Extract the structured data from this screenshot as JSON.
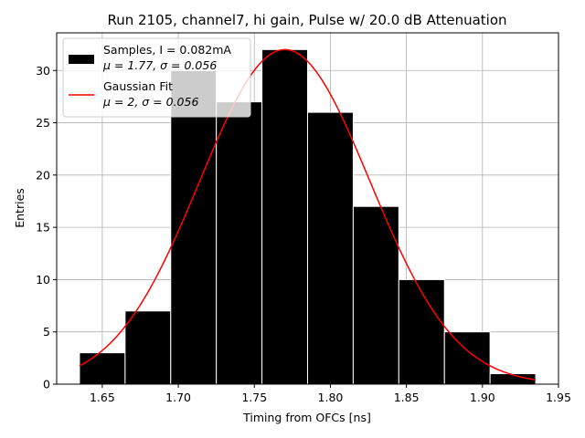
{
  "chart_data": {
    "type": "bar",
    "title": "Run 2105, channel7, hi gain, Pulse w/ 20.0 dB Attenuation",
    "xlabel": "Timing from OFCs [ns]",
    "ylabel": "Entries",
    "xlim": [
      1.62,
      1.95
    ],
    "ylim": [
      0,
      33.6
    ],
    "xticks": [
      1.65,
      1.7,
      1.75,
      1.8,
      1.85,
      1.9,
      1.95
    ],
    "xtick_labels": [
      "1.65",
      "1.70",
      "1.75",
      "1.80",
      "1.85",
      "1.90",
      "1.95"
    ],
    "yticks": [
      0,
      5,
      10,
      15,
      20,
      25,
      30
    ],
    "ytick_labels": [
      "0",
      "5",
      "10",
      "15",
      "20",
      "25",
      "30"
    ],
    "grid": true,
    "legend_position": "top-left",
    "histogram": {
      "name_line1": "Samples, I = 0.082mA",
      "name_line2": "μ = 1.77, σ = 0.056",
      "color": "#000000",
      "edgecolor": "#ffffff",
      "bin_edges": [
        1.635,
        1.665,
        1.695,
        1.725,
        1.755,
        1.785,
        1.815,
        1.845,
        1.875,
        1.905,
        1.935
      ],
      "counts": [
        3,
        7,
        30,
        27,
        32,
        26,
        17,
        10,
        5,
        1
      ]
    },
    "fit": {
      "name_line1": "Gaussian Fit",
      "name_line2": "μ = 2, σ = 0.056",
      "color": "#ff0000",
      "mu": 1.77,
      "sigma": 0.056,
      "amplitude": 32.0,
      "x_range": [
        1.635,
        1.935
      ]
    }
  }
}
